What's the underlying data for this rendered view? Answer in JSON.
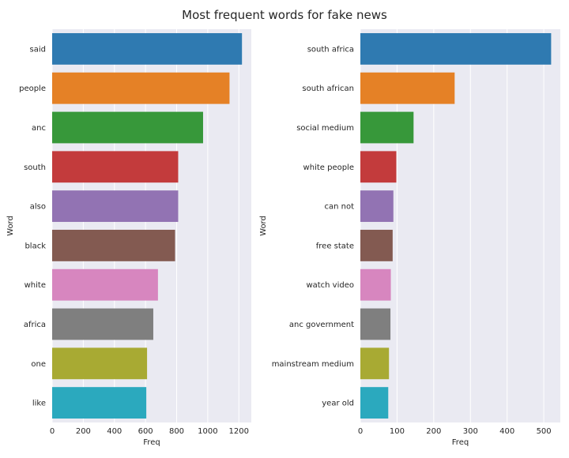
{
  "figure": {
    "title": "Most frequent words for fake news",
    "colors": {
      "plot_bg": "#eaeaf2",
      "grid": "#ffffff",
      "text": "#262626",
      "palette": [
        "#2f7ab1",
        "#e58126",
        "#37983a",
        "#c33b3c",
        "#9273b3",
        "#835a51",
        "#d786bf",
        "#7f7f7f",
        "#a8aa33",
        "#2ba9be"
      ]
    }
  },
  "chart_data": [
    {
      "type": "bar",
      "orientation": "horizontal",
      "categories": [
        "said",
        "people",
        "anc",
        "south",
        "also",
        "black",
        "white",
        "africa",
        "one",
        "like"
      ],
      "values": [
        1220,
        1140,
        970,
        810,
        810,
        790,
        680,
        650,
        610,
        605
      ],
      "xlabel": "Freq",
      "ylabel": "Word",
      "xlim": [
        0,
        1280
      ],
      "xticks": [
        0,
        200,
        400,
        600,
        800,
        1000,
        1200
      ],
      "grid": true
    },
    {
      "type": "bar",
      "orientation": "horizontal",
      "categories": [
        "south africa",
        "south african",
        "social medium",
        "white people",
        "can not",
        "free state",
        "watch video",
        "anc government",
        "mainstream medium",
        "year old"
      ],
      "values": [
        520,
        257,
        145,
        98,
        90,
        88,
        83,
        82,
        78,
        76
      ],
      "xlabel": "Freq",
      "ylabel": "Word",
      "xlim": [
        0,
        545
      ],
      "xticks": [
        0,
        100,
        200,
        300,
        400,
        500
      ],
      "grid": true
    }
  ]
}
